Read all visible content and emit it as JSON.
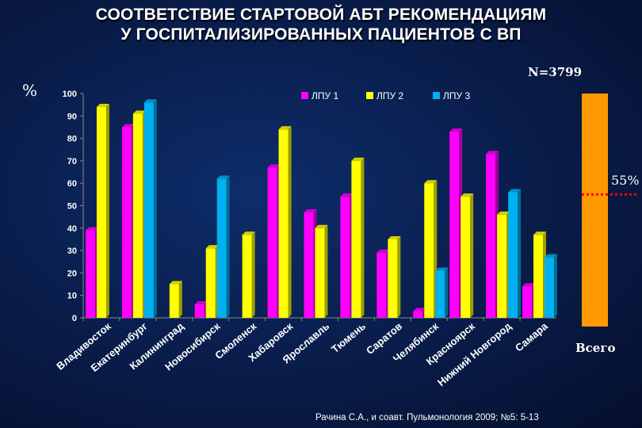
{
  "title_line1": "СООТВЕТСТВИЕ СТАРТОВОЙ АБТ РЕКОМЕНДАЦИЯМ",
  "title_line2": "У ГОСПИТАЛИЗИРОВАННЫХ ПАЦИЕНТОВ С ВП",
  "n_label": "N=3799",
  "source": "Рачина С.А., и соавт. Пульмонология 2009; №5: 5-13",
  "colors": {
    "lpu1": "#ff00ff",
    "lpu2": "#ffff00",
    "lpu3": "#00b0f0",
    "total": "#ff9900",
    "reference": "#ff0000"
  },
  "chart_data": {
    "type": "bar",
    "title": "СООТВЕТСТВИЕ СТАРТОВОЙ АБТ РЕКОМЕНДАЦИЯМ У ГОСПИТАЛИЗИРОВАННЫХ ПАЦИЕНТОВ С ВП",
    "ylabel": "%",
    "ylim": [
      0,
      100
    ],
    "yticks": [
      0,
      10,
      20,
      30,
      40,
      50,
      60,
      70,
      80,
      90,
      100
    ],
    "legend_position": "top",
    "categories": [
      "Владивосток",
      "Екатеринбург",
      "Калининград",
      "Новосибирск",
      "Смоленск",
      "Хабаровск",
      "Ярославль",
      "Тюмень",
      "Саратов",
      "Челябинск",
      "Красноярск",
      "Нижний Новгород",
      "Самара"
    ],
    "series": [
      {
        "name": "ЛПУ 1",
        "values": [
          39,
          85,
          null,
          6,
          null,
          67,
          47,
          54,
          29,
          3,
          83,
          73,
          14
        ]
      },
      {
        "name": "ЛПУ 2",
        "values": [
          94,
          91,
          15,
          31,
          37,
          84,
          40,
          70,
          35,
          60,
          54,
          46,
          37
        ]
      },
      {
        "name": "ЛПУ 3",
        "values": [
          null,
          96,
          null,
          62,
          null,
          null,
          null,
          null,
          null,
          21,
          null,
          56,
          27
        ]
      }
    ],
    "total": {
      "label": "Всего",
      "value": 55,
      "annotation": "55%"
    }
  }
}
